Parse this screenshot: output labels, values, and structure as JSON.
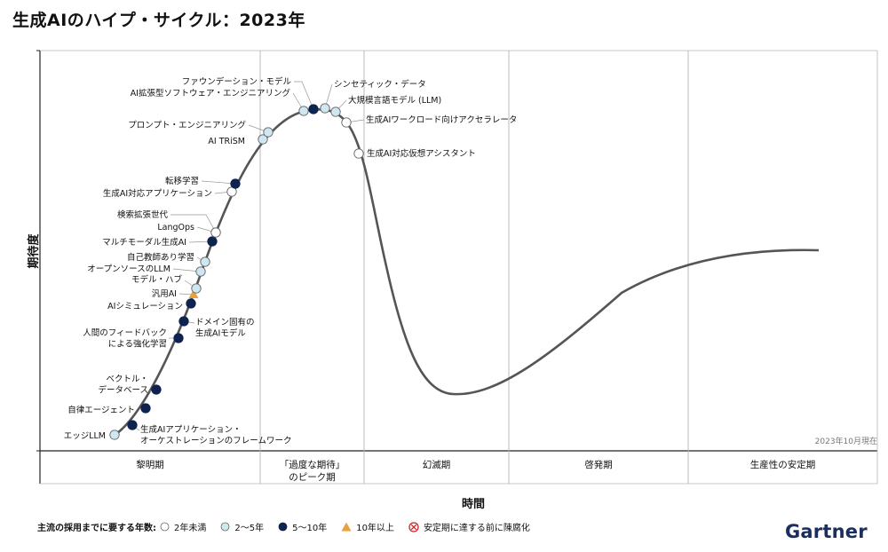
{
  "title": "生成AIのハイプ・サイクル：2023年",
  "colors": {
    "lt2": "#ffffff",
    "y2to5": "#cfe6f3",
    "y5to10": "#0f2350",
    "gt10": "#e9a23b",
    "obsolete": "#cc2222",
    "curve": "#555555",
    "grid": "#b4b4b4",
    "brand": "#1b2f5e"
  },
  "chart_data": {
    "type": "hype_cycle",
    "ylabel": "期待度",
    "xlabel": "時間",
    "as_of": "2023年10月現在",
    "phases": [
      {
        "label": "黎明期"
      },
      {
        "label": "「過度な期待」\nのピーク期"
      },
      {
        "label": "幻滅期"
      },
      {
        "label": "啓発期"
      },
      {
        "label": "生産性の安定期"
      }
    ],
    "legend": {
      "title": "主流の採用までに要する年数:",
      "items": [
        {
          "key": "lt2",
          "label": "2年未満",
          "shape": "circle"
        },
        {
          "key": "y2to5",
          "label": "2～5年",
          "shape": "circle"
        },
        {
          "key": "y5to10",
          "label": "5～10年",
          "shape": "circle"
        },
        {
          "key": "gt10",
          "label": "10年以上",
          "shape": "triangle"
        },
        {
          "key": "obsolete",
          "label": "安定期に達する前に陳腐化",
          "shape": "cross"
        }
      ]
    },
    "technologies": [
      {
        "name": "エッジLLM",
        "phase": "黎明期",
        "years": "y2to5"
      },
      {
        "name": "生成AIアプリケーション・\nオーケストレーションのフレームワーク",
        "phase": "黎明期",
        "years": "y5to10"
      },
      {
        "name": "自律エージェント",
        "phase": "黎明期",
        "years": "y5to10"
      },
      {
        "name": "ベクトル・\nデータベース",
        "phase": "黎明期",
        "years": "y5to10"
      },
      {
        "name": "人間のフィードバック\nによる強化学習",
        "phase": "黎明期",
        "years": "y5to10"
      },
      {
        "name": "ドメイン固有の\n生成AIモデル",
        "phase": "黎明期",
        "years": "y5to10"
      },
      {
        "name": "AIシミュレーション",
        "phase": "黎明期",
        "years": "y5to10"
      },
      {
        "name": "汎用AI",
        "phase": "黎明期",
        "years": "gt10"
      },
      {
        "name": "モデル・ハブ",
        "phase": "黎明期",
        "years": "y2to5"
      },
      {
        "name": "オープンソースのLLM",
        "phase": "黎明期",
        "years": "y2to5"
      },
      {
        "name": "自己教師あり学習",
        "phase": "黎明期",
        "years": "y2to5"
      },
      {
        "name": "マルチモーダル生成AI",
        "phase": "黎明期",
        "years": "y5to10"
      },
      {
        "name": "LangOps",
        "phase": "黎明期",
        "years": "lt2"
      },
      {
        "name": "検索拡張世代",
        "phase": "黎明期",
        "years": "lt2"
      },
      {
        "name": "生成AI対応アプリケーション",
        "phase": "黎明期",
        "years": "lt2"
      },
      {
        "name": "転移学習",
        "phase": "黎明期",
        "years": "y5to10"
      },
      {
        "name": "AI TRiSM",
        "phase": "「過度な期待」のピーク期",
        "years": "y2to5"
      },
      {
        "name": "プロンプト・エンジニアリング",
        "phase": "「過度な期待」のピーク期",
        "years": "y2to5"
      },
      {
        "name": "AI拡張型ソフトウェア・エンジニアリング",
        "phase": "「過度な期待」のピーク期",
        "years": "y2to5"
      },
      {
        "name": "ファウンデーション・モデル",
        "phase": "「過度な期待」のピーク期",
        "years": "y5to10"
      },
      {
        "name": "シンセティック・データ",
        "phase": "「過度な期待」のピーク期",
        "years": "y2to5"
      },
      {
        "name": "大規模言語モデル (LLM)",
        "phase": "「過度な期待」のピーク期",
        "years": "y2to5"
      },
      {
        "name": "生成AIワークロード向けアクセラレータ",
        "phase": "「過度な期待」のピーク期",
        "years": "lt2"
      },
      {
        "name": "生成AI対応仮想アシスタント",
        "phase": "「過度な期待」のピーク期",
        "years": "lt2"
      }
    ]
  },
  "brand": "Gartner"
}
